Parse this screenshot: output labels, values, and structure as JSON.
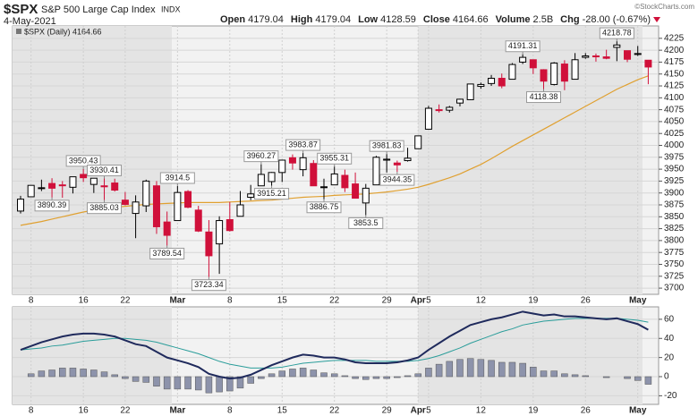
{
  "header": {
    "symbol": "$SPX",
    "name": "S&P 500 Large Cap Index",
    "exchange": "INDX",
    "date": "4-May-2021",
    "quote": [
      {
        "label": "Open",
        "value": "4179.04"
      },
      {
        "label": "High",
        "value": "4179.04"
      },
      {
        "label": "Low",
        "value": "4128.59"
      },
      {
        "label": "Close",
        "value": "4164.66"
      },
      {
        "label": "Volume",
        "value": "2.5B"
      },
      {
        "label": "Chg",
        "value": "-28.00 (-0.67%)"
      }
    ],
    "watermark": "©StockCharts.com"
  },
  "chart_data": [
    {
      "type": "candlestick",
      "legend": "$SPX (Daily) 4164.66",
      "open": [
        3862,
        3892,
        3910,
        3920,
        3917,
        3912,
        3939,
        3918,
        3915,
        3921,
        3885,
        3857,
        3873,
        3915,
        3839,
        3842,
        3903,
        3864,
        3818,
        3793,
        3844,
        3851,
        3891,
        3915,
        3924,
        3943,
        3974,
        3949,
        3962,
        3913,
        3917,
        3937,
        3919,
        3879,
        3917,
        3969,
        3963,
        3968,
        3993,
        4034,
        4075,
        4074,
        4089,
        4096,
        4124,
        4130,
        4141,
        4139,
        4175,
        4180,
        4159,
        4128,
        4171,
        4139,
        4185,
        4188,
        4186,
        4206,
        4199,
        4191,
        4179.04
      ],
      "high": [
        3894,
        3916,
        3928,
        3931,
        3925,
        3934,
        3950.43,
        3928,
        3930.41,
        3930,
        3902,
        3895,
        3928,
        3925,
        3861,
        3914.5,
        3906,
        3873,
        3843,
        3851,
        3881,
        3904,
        3917,
        3960.27,
        3944,
        3970,
        3981,
        3983.87,
        3969,
        3930,
        3955.31,
        3949,
        3943,
        3919,
        3978,
        3981.83,
        3968,
        3995,
        4020,
        4083,
        4086,
        4083,
        4098,
        4129,
        4132,
        4148,
        4151,
        4173,
        4191.31,
        4180,
        4160,
        4175,
        4179,
        4194,
        4194,
        4193,
        4201,
        4218.78,
        4199,
        4209,
        4179.04
      ],
      "low": [
        3857,
        3892,
        3904,
        3890.39,
        3890,
        3899,
        3923,
        3900,
        3885.03,
        3903,
        3874,
        3805,
        3860,
        3814,
        3789.54,
        3842,
        3868,
        3818,
        3723.34,
        3730,
        3819,
        3851,
        3885,
        3915,
        3915.21,
        3923,
        3949,
        3935,
        3915,
        3886.75,
        3917,
        3902,
        3889,
        3853.5,
        3917,
        3943,
        3944.35,
        3966,
        3993,
        4034,
        4069,
        4069,
        4082,
        4095,
        4119,
        4125,
        4120,
        4139,
        4171,
        4150,
        4118.38,
        4126,
        4116,
        4139,
        4182,
        4176,
        4181,
        4177,
        4175,
        4188,
        4128.59
      ],
      "close": [
        3887,
        3916,
        3911,
        3910,
        3916,
        3934,
        3932,
        3931,
        3913,
        3906,
        3876,
        3881,
        3925,
        3829,
        3811,
        3901,
        3870,
        3820,
        3768,
        3842,
        3821,
        3875,
        3898,
        3939,
        3943,
        3969,
        3963,
        3974,
        3915,
        3913,
        3940,
        3911,
        3889,
        3910,
        3975,
        3971,
        3959,
        3973,
        4020,
        4078,
        4074,
        4080,
        4097,
        4129,
        4128,
        4141,
        4125,
        4170,
        4185,
        4163,
        4135,
        4173,
        4135,
        4180,
        4188,
        4187,
        4183,
        4211,
        4181,
        4193,
        4164.66
      ],
      "up_color": "#000000",
      "down_color": "#d0103a",
      "moving_average": {
        "color": "#e0a030",
        "values": [
          3832,
          3836,
          3840,
          3845,
          3850,
          3855,
          3860,
          3864,
          3867,
          3870,
          3872,
          3874,
          3876,
          3877,
          3878,
          3879,
          3880,
          3880,
          3880,
          3880,
          3881,
          3882,
          3883,
          3884,
          3885,
          3887,
          3889,
          3891,
          3892,
          3893,
          3895,
          3896,
          3897,
          3898,
          3900,
          3902,
          3905,
          3908,
          3912,
          3918,
          3925,
          3932,
          3940,
          3950,
          3960,
          3972,
          3985,
          3998,
          4010,
          4022,
          4034,
          4046,
          4058,
          4070,
          4082,
          4094,
          4106,
          4118,
          4128,
          4138,
          4146
        ]
      },
      "annotations": [
        {
          "at": 6,
          "value": 3950.43,
          "side": "high"
        },
        {
          "at": 3,
          "value": 3890.39,
          "side": "low"
        },
        {
          "at": 8,
          "value": 3930.41,
          "side": "high"
        },
        {
          "at": 8,
          "value": 3885.03,
          "side": "low"
        },
        {
          "at": 15,
          "value": 3914.5,
          "side": "high"
        },
        {
          "at": 14,
          "value": 3789.54,
          "side": "low"
        },
        {
          "at": 18,
          "value": 3723.34,
          "side": "low"
        },
        {
          "at": 23,
          "value": 3960.27,
          "side": "high"
        },
        {
          "at": 24,
          "value": 3915.21,
          "side": "low"
        },
        {
          "at": 27,
          "value": 3983.87,
          "side": "high"
        },
        {
          "at": 29,
          "value": 3886.75,
          "side": "low"
        },
        {
          "at": 30,
          "value": 3955.31,
          "side": "high"
        },
        {
          "at": 33,
          "value": 3853.5,
          "side": "low"
        },
        {
          "at": 35,
          "value": 3981.83,
          "side": "high"
        },
        {
          "at": 36,
          "value": 3944.35,
          "side": "low"
        },
        {
          "at": 48,
          "value": 4191.31,
          "side": "high"
        },
        {
          "at": 50,
          "value": 4118.38,
          "side": "low"
        },
        {
          "at": 57,
          "value": 4218.78,
          "side": "high"
        }
      ],
      "ylim": [
        3687,
        4251
      ],
      "yticks": [
        3700,
        3725,
        3750,
        3775,
        3800,
        3825,
        3850,
        3875,
        3900,
        3925,
        3950,
        3975,
        4000,
        4025,
        4050,
        4075,
        4100,
        4125,
        4150,
        4175,
        4200,
        4225
      ],
      "grid": true
    },
    {
      "type": "macd",
      "series": [
        {
          "color": "#1f2a5c",
          "values": [
            28,
            32,
            36,
            39,
            42,
            44,
            45,
            45,
            44,
            42,
            38,
            34,
            32,
            26,
            20,
            17,
            14,
            10,
            3,
            0,
            -2,
            -1,
            2,
            7,
            12,
            16,
            20,
            23,
            22,
            20,
            20,
            18,
            15,
            14,
            14,
            14,
            15,
            17,
            20,
            28,
            35,
            42,
            48,
            54,
            57,
            60,
            62,
            65,
            68,
            66,
            64,
            65,
            63,
            63,
            62,
            61,
            60,
            61,
            58,
            55,
            49
          ]
        },
        {
          "color": "#2a9d9a",
          "values": [
            28,
            29,
            30,
            32,
            33,
            35,
            37,
            38,
            39,
            40,
            40,
            39,
            38,
            36,
            33,
            30,
            27,
            24,
            20,
            16,
            13,
            11,
            9,
            9,
            9,
            10,
            12,
            14,
            15,
            16,
            17,
            17,
            17,
            17,
            16,
            16,
            16,
            16,
            17,
            19,
            22,
            26,
            30,
            35,
            39,
            43,
            47,
            50,
            54,
            56,
            58,
            59,
            60,
            61,
            61,
            61,
            61,
            61,
            60,
            59,
            57
          ]
        }
      ],
      "histogram": {
        "color": "#8d93ab",
        "values": [
          0,
          3,
          6,
          7,
          9,
          9,
          8,
          7,
          5,
          2,
          -2,
          -5,
          -6,
          -10,
          -13,
          -13,
          -13,
          -14,
          -17,
          -16,
          -15,
          -12,
          -7,
          -2,
          3,
          6,
          8,
          9,
          7,
          4,
          3,
          1,
          -2,
          -3,
          -2,
          -2,
          -1,
          1,
          3,
          9,
          13,
          16,
          18,
          19,
          18,
          17,
          15,
          15,
          14,
          10,
          6,
          6,
          3,
          2,
          1,
          0,
          -1,
          0,
          -2,
          -4,
          -8
        ]
      },
      "ylim": [
        -29,
        73
      ],
      "yticks": [
        -20,
        0,
        20,
        40,
        60
      ],
      "grid": true
    }
  ],
  "x_labels": [
    {
      "at": 1,
      "label": "8"
    },
    {
      "at": 6,
      "label": "16"
    },
    {
      "at": 10,
      "label": "22"
    },
    {
      "at": 15,
      "label": "Mar"
    },
    {
      "at": 20,
      "label": "8"
    },
    {
      "at": 25,
      "label": "15"
    },
    {
      "at": 30,
      "label": "22"
    },
    {
      "at": 35,
      "label": "29"
    },
    {
      "at": 38,
      "label": "Apr"
    },
    {
      "at": 39,
      "label": "5"
    },
    {
      "at": 44,
      "label": "12"
    },
    {
      "at": 49,
      "label": "19"
    },
    {
      "at": 54,
      "label": "26"
    },
    {
      "at": 59,
      "label": "May"
    }
  ]
}
